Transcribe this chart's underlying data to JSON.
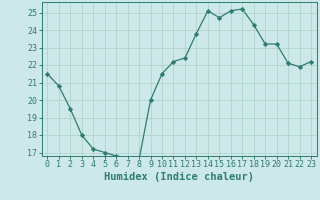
{
  "x": [
    0,
    1,
    2,
    3,
    4,
    5,
    6,
    7,
    8,
    9,
    10,
    11,
    12,
    13,
    14,
    15,
    16,
    17,
    18,
    19,
    20,
    21,
    22,
    23
  ],
  "y": [
    21.5,
    20.8,
    19.5,
    18.0,
    17.2,
    17.0,
    16.8,
    16.7,
    16.6,
    20.0,
    21.5,
    22.2,
    22.4,
    23.8,
    25.1,
    24.7,
    25.1,
    25.2,
    24.3,
    23.2,
    23.2,
    22.1,
    21.9,
    22.2
  ],
  "line_color": "#2e7d6e",
  "marker": "D",
  "marker_size": 2.2,
  "bg_color": "#cce8e8",
  "grid_color": "#aad0cc",
  "xlabel": "Humidex (Indice chaleur)",
  "ylim": [
    16.8,
    25.6
  ],
  "xlim": [
    -0.5,
    23.5
  ],
  "yticks": [
    17,
    18,
    19,
    20,
    21,
    22,
    23,
    24,
    25
  ],
  "xticks": [
    0,
    1,
    2,
    3,
    4,
    5,
    6,
    7,
    8,
    9,
    10,
    11,
    12,
    13,
    14,
    15,
    16,
    17,
    18,
    19,
    20,
    21,
    22,
    23
  ],
  "tick_fontsize": 6.0,
  "xlabel_fontsize": 7.5,
  "tick_color": "#2e7d6e"
}
